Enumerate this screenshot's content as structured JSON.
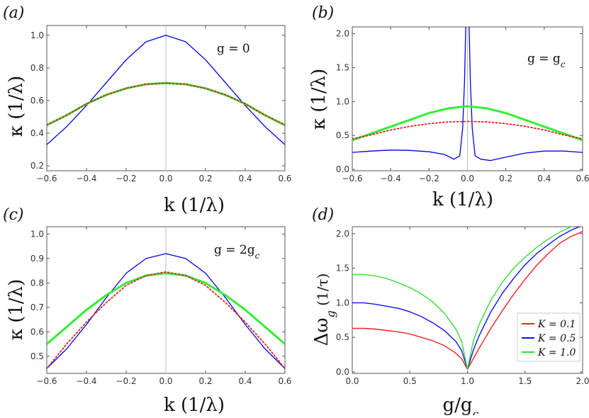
{
  "chart_data": [
    {
      "type": "line",
      "panel_label": "(a)",
      "annotation": "g = 0",
      "xlabel": "k (1/λ)",
      "ylabel": "κ (1/λ)",
      "xlim": [
        -0.6,
        0.6
      ],
      "ylim": [
        0.17,
        1.06
      ],
      "xticks": [
        "-0.6",
        "-0.4",
        "-0.2",
        "0.0",
        "0.2",
        "0.4",
        "0.6"
      ],
      "yticks": [
        "0.2",
        "0.4",
        "0.6",
        "0.8",
        "1.0"
      ],
      "vline_at": 0,
      "series": [
        {
          "color": "#0000ee",
          "style": "solid",
          "width": 1.3,
          "x": [
            -0.6,
            -0.5,
            -0.4,
            -0.3,
            -0.2,
            -0.1,
            0,
            0.1,
            0.2,
            0.3,
            0.4,
            0.5,
            0.6
          ],
          "values": [
            0.33,
            0.44,
            0.57,
            0.71,
            0.85,
            0.96,
            1.0,
            0.96,
            0.85,
            0.71,
            0.57,
            0.44,
            0.33
          ]
        },
        {
          "color": "#33ee33",
          "style": "solid",
          "width": 3,
          "x": [
            -0.6,
            -0.5,
            -0.4,
            -0.3,
            -0.2,
            -0.1,
            0,
            0.1,
            0.2,
            0.3,
            0.4,
            0.5,
            0.6
          ],
          "values": [
            0.45,
            0.51,
            0.58,
            0.635,
            0.675,
            0.7,
            0.707,
            0.7,
            0.675,
            0.635,
            0.58,
            0.51,
            0.45
          ]
        },
        {
          "color": "#dd2222",
          "style": "dotted",
          "width": 1.8,
          "x": [
            -0.6,
            -0.5,
            -0.4,
            -0.3,
            -0.2,
            -0.1,
            0,
            0.1,
            0.2,
            0.3,
            0.4,
            0.5,
            0.6
          ],
          "values": [
            0.45,
            0.51,
            0.58,
            0.635,
            0.675,
            0.7,
            0.707,
            0.7,
            0.675,
            0.635,
            0.58,
            0.51,
            0.45
          ]
        }
      ]
    },
    {
      "type": "line",
      "panel_label": "(b)",
      "annotation": "g = g",
      "annotation_sub": "c",
      "xlabel": "k (1/λ)",
      "ylabel": "κ (1/λ)",
      "xlim": [
        -0.6,
        0.6
      ],
      "ylim": [
        -0.02,
        2.1
      ],
      "xticks": [
        "-0.6",
        "-0.4",
        "-0.2",
        "0.0",
        "0.2",
        "0.4",
        "0.6"
      ],
      "yticks": [
        "0.0",
        "0.5",
        "1.0",
        "1.5",
        "2.0"
      ],
      "vline_at": 0,
      "series": [
        {
          "color": "#0000ee",
          "style": "solid",
          "width": 1.3,
          "x": [
            -0.6,
            -0.5,
            -0.4,
            -0.3,
            -0.2,
            -0.12,
            -0.07,
            -0.04,
            -0.025,
            -0.015,
            -0.008,
            0.008,
            0.015,
            0.025,
            0.04,
            0.07,
            0.12,
            0.2,
            0.3,
            0.4,
            0.5,
            0.6
          ],
          "values": [
            0.25,
            0.27,
            0.285,
            0.28,
            0.26,
            0.22,
            0.15,
            0.2,
            0.6,
            1.3,
            2.2,
            2.2,
            1.3,
            0.6,
            0.2,
            0.15,
            0.13,
            0.18,
            0.24,
            0.27,
            0.27,
            0.25
          ]
        },
        {
          "color": "#33ee33",
          "style": "solid",
          "width": 3,
          "x": [
            -0.6,
            -0.5,
            -0.4,
            -0.3,
            -0.2,
            -0.1,
            0,
            0.1,
            0.2,
            0.3,
            0.4,
            0.5,
            0.6
          ],
          "values": [
            0.43,
            0.53,
            0.63,
            0.73,
            0.83,
            0.9,
            0.93,
            0.9,
            0.83,
            0.73,
            0.63,
            0.53,
            0.43
          ]
        },
        {
          "color": "#dd2222",
          "style": "dotted",
          "width": 1.8,
          "x": [
            -0.6,
            -0.5,
            -0.4,
            -0.3,
            -0.2,
            -0.1,
            0,
            0.1,
            0.2,
            0.3,
            0.4,
            0.5,
            0.6
          ],
          "values": [
            0.45,
            0.51,
            0.58,
            0.635,
            0.675,
            0.7,
            0.707,
            0.7,
            0.675,
            0.635,
            0.58,
            0.51,
            0.45
          ]
        }
      ]
    },
    {
      "type": "line",
      "panel_label": "(c)",
      "annotation": "g = 2g",
      "annotation_sub": "c",
      "xlabel": "k (1/λ)",
      "ylabel": "κ (1/λ)",
      "xlim": [
        -0.6,
        0.6
      ],
      "ylim": [
        0.43,
        1.03
      ],
      "xticks": [
        "-0.6",
        "-0.4",
        "-0.2",
        "0.0",
        "0.2",
        "0.4",
        "0.6"
      ],
      "yticks": [
        "0.5",
        "0.6",
        "0.7",
        "0.8",
        "0.9",
        "1.0"
      ],
      "vline_at": 0,
      "series": [
        {
          "color": "#0000ee",
          "style": "solid",
          "width": 1.3,
          "x": [
            -0.6,
            -0.5,
            -0.4,
            -0.3,
            -0.2,
            -0.1,
            0,
            0.1,
            0.2,
            0.3,
            0.4,
            0.5,
            0.6
          ],
          "values": [
            0.45,
            0.53,
            0.63,
            0.74,
            0.84,
            0.9,
            0.92,
            0.9,
            0.84,
            0.74,
            0.63,
            0.53,
            0.45
          ]
        },
        {
          "color": "#33ee33",
          "style": "solid",
          "width": 3,
          "x": [
            -0.6,
            -0.5,
            -0.4,
            -0.3,
            -0.2,
            -0.1,
            0,
            0.1,
            0.2,
            0.3,
            0.4,
            0.5,
            0.6
          ],
          "values": [
            0.55,
            0.62,
            0.69,
            0.75,
            0.8,
            0.83,
            0.84,
            0.83,
            0.8,
            0.75,
            0.69,
            0.62,
            0.55
          ]
        },
        {
          "color": "#dd2222",
          "style": "dotted",
          "width": 1.8,
          "x": [
            -0.6,
            -0.5,
            -0.4,
            -0.3,
            -0.2,
            -0.1,
            0,
            0.1,
            0.2,
            0.3,
            0.4,
            0.5,
            0.6
          ],
          "values": [
            0.45,
            0.55,
            0.64,
            0.72,
            0.79,
            0.83,
            0.845,
            0.83,
            0.79,
            0.72,
            0.64,
            0.55,
            0.45
          ]
        }
      ]
    },
    {
      "type": "line",
      "panel_label": "(d)",
      "xlabel": "g/g",
      "xlabel_sub": "c",
      "ylabel": "Δω",
      "ylabel_sub": "g",
      "ylabel_tail": " (1/τ)",
      "xlim": [
        0,
        2
      ],
      "ylim": [
        -0.02,
        2.1
      ],
      "xticks": [
        "0.0",
        "0.5",
        "1.0",
        "1.5",
        "2.0"
      ],
      "yticks": [
        "0.0",
        "0.5",
        "1.0",
        "1.5",
        "2.0"
      ],
      "legend_position": "right",
      "series": [
        {
          "name": "K = 0.1",
          "color": "#ee2222",
          "style": "solid",
          "width": 1.4,
          "x": [
            0,
            0.1,
            0.2,
            0.3,
            0.4,
            0.5,
            0.6,
            0.7,
            0.8,
            0.9,
            0.95,
            1.0,
            1.05,
            1.1,
            1.2,
            1.3,
            1.4,
            1.5,
            1.6,
            1.7,
            1.8,
            1.9,
            2.0
          ],
          "values": [
            0.63,
            0.63,
            0.62,
            0.6,
            0.58,
            0.55,
            0.5,
            0.45,
            0.38,
            0.27,
            0.19,
            0.04,
            0.19,
            0.34,
            0.62,
            0.88,
            1.12,
            1.34,
            1.54,
            1.71,
            1.86,
            1.96,
            2.03
          ]
        },
        {
          "name": "K = 0.5",
          "color": "#1111ee",
          "style": "solid",
          "width": 1.4,
          "x": [
            0,
            0.1,
            0.2,
            0.3,
            0.4,
            0.5,
            0.6,
            0.7,
            0.8,
            0.9,
            0.95,
            1.0,
            1.05,
            1.1,
            1.2,
            1.3,
            1.4,
            1.5,
            1.6,
            1.7,
            1.8,
            1.9,
            2.0
          ],
          "values": [
            1.0,
            1.0,
            0.98,
            0.95,
            0.92,
            0.87,
            0.8,
            0.71,
            0.6,
            0.44,
            0.31,
            0.04,
            0.31,
            0.52,
            0.86,
            1.13,
            1.35,
            1.55,
            1.71,
            1.84,
            1.96,
            2.05,
            2.12
          ]
        },
        {
          "name": "K = 1.0",
          "color": "#33dd33",
          "style": "solid",
          "width": 1.4,
          "x": [
            0,
            0.1,
            0.2,
            0.3,
            0.4,
            0.5,
            0.6,
            0.7,
            0.8,
            0.9,
            0.95,
            1.0,
            1.05,
            1.1,
            1.2,
            1.3,
            1.4,
            1.5,
            1.6,
            1.7,
            1.8,
            1.9,
            2.0
          ],
          "values": [
            1.41,
            1.41,
            1.39,
            1.35,
            1.29,
            1.22,
            1.13,
            1.01,
            0.85,
            0.62,
            0.44,
            0.04,
            0.44,
            0.68,
            1.03,
            1.29,
            1.5,
            1.66,
            1.8,
            1.92,
            2.02,
            2.1,
            2.16
          ]
        }
      ]
    }
  ]
}
